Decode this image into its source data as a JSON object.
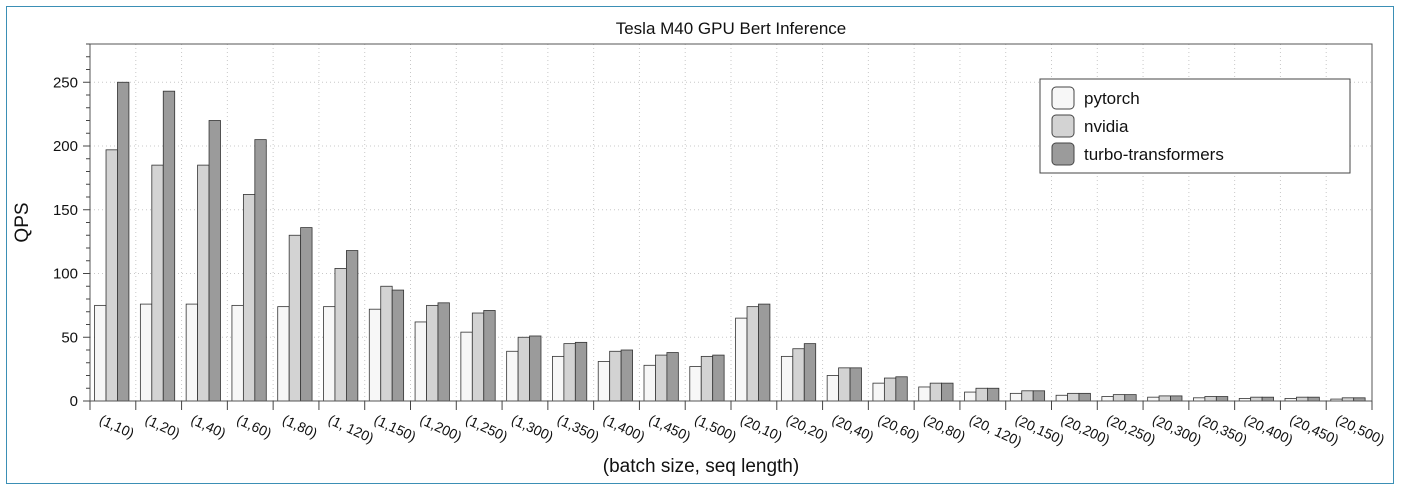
{
  "chart_data": {
    "type": "bar",
    "title": "Tesla M40 GPU Bert Inference",
    "xlabel": "(batch size, seq length)",
    "ylabel": "QPS",
    "ylim": [
      0,
      280
    ],
    "yticks": [
      0,
      50,
      100,
      150,
      200,
      250
    ],
    "grid": true,
    "legend_position": "top-right",
    "categories": [
      "(1,10)",
      "(1,20)",
      "(1,40)",
      "(1,60)",
      "(1,80)",
      "(1, 120)",
      "(1,150)",
      "(1,200)",
      "(1,250)",
      "(1,300)",
      "(1,350)",
      "(1,400)",
      "(1,450)",
      "(1,500)",
      "(20,10)",
      "(20,20)",
      "(20,40)",
      "(20,60)",
      "(20,80)",
      "(20, 120)",
      "(20,150)",
      "(20,200)",
      "(20,250)",
      "(20,300)",
      "(20,350)",
      "(20,400)",
      "(20,450)",
      "(20,500)"
    ],
    "series": [
      {
        "name": "pytorch",
        "color": "#f7f7f7",
        "values": [
          75,
          76,
          76,
          75,
          74,
          74,
          72,
          62,
          54,
          39,
          35,
          31,
          28,
          27,
          65,
          35,
          20,
          14,
          11,
          7,
          6,
          4.5,
          3.5,
          3,
          2.5,
          2,
          2,
          1.5
        ]
      },
      {
        "name": "nvidia",
        "color": "#d3d3d3",
        "values": [
          197,
          185,
          185,
          162,
          130,
          104,
          90,
          75,
          69,
          50,
          45,
          39,
          36,
          35,
          74,
          41,
          26,
          18,
          14,
          10,
          8,
          6,
          5,
          4,
          3.5,
          3,
          3,
          2.5
        ]
      },
      {
        "name": "turbo-transformers",
        "color": "#9b9b9b",
        "values": [
          250,
          243,
          220,
          205,
          136,
          118,
          87,
          77,
          71,
          51,
          46,
          40,
          38,
          36,
          76,
          45,
          26,
          19,
          14,
          10,
          8,
          6,
          5,
          4,
          3.5,
          3,
          3,
          2.5
        ]
      }
    ]
  }
}
